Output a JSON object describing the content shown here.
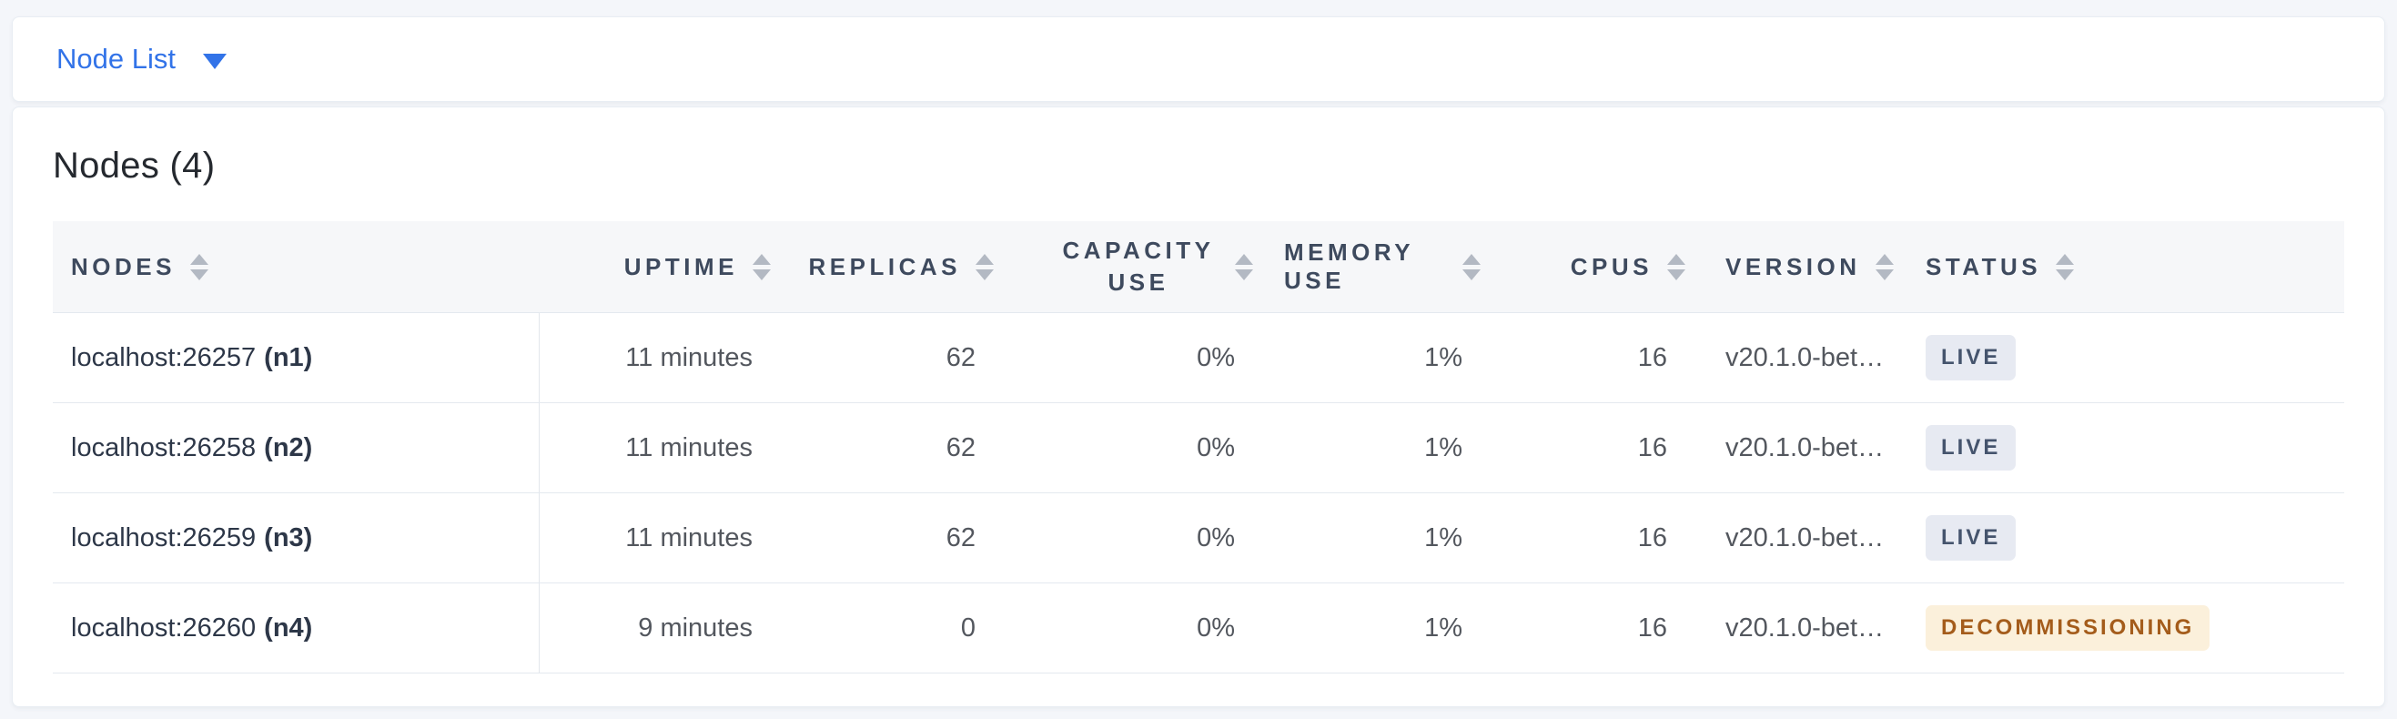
{
  "toolbar": {
    "view_selector": {
      "label": "Node List",
      "caret_icon": "caret-down-icon"
    }
  },
  "main": {
    "title": "Nodes (4)",
    "table": {
      "columns": [
        {
          "key": "nodes",
          "label": "NODES",
          "align": "left",
          "sortable": true
        },
        {
          "key": "uptime",
          "label": "UPTIME",
          "align": "right",
          "sortable": true
        },
        {
          "key": "replicas",
          "label": "REPLICAS",
          "align": "right",
          "sortable": true
        },
        {
          "key": "capacity_use",
          "label": "CAPACITY USE",
          "align": "right",
          "sortable": true,
          "wrap": true
        },
        {
          "key": "memory_use",
          "label": "MEMORY USE",
          "align": "right",
          "sortable": true
        },
        {
          "key": "cpus",
          "label": "CPUS",
          "align": "right",
          "sortable": true
        },
        {
          "key": "version",
          "label": "VERSION",
          "align": "left",
          "sortable": true
        },
        {
          "key": "status",
          "label": "STATUS",
          "align": "left",
          "sortable": true
        }
      ],
      "rows": [
        {
          "address": "localhost:26257",
          "node_id": "(n1)",
          "uptime": "11 minutes",
          "replicas": "62",
          "capacity_use": "0%",
          "memory_use": "1%",
          "cpus": "16",
          "version": "v20.1.0-bet…",
          "status": {
            "label": "LIVE",
            "type": "live"
          }
        },
        {
          "address": "localhost:26258",
          "node_id": "(n2)",
          "uptime": "11 minutes",
          "replicas": "62",
          "capacity_use": "0%",
          "memory_use": "1%",
          "cpus": "16",
          "version": "v20.1.0-bet…",
          "status": {
            "label": "LIVE",
            "type": "live"
          }
        },
        {
          "address": "localhost:26259",
          "node_id": "(n3)",
          "uptime": "11 minutes",
          "replicas": "62",
          "capacity_use": "0%",
          "memory_use": "1%",
          "cpus": "16",
          "version": "v20.1.0-bet…",
          "status": {
            "label": "LIVE",
            "type": "live"
          }
        },
        {
          "address": "localhost:26260",
          "node_id": "(n4)",
          "uptime": "9 minutes",
          "replicas": "0",
          "capacity_use": "0%",
          "memory_use": "1%",
          "cpus": "16",
          "version": "v20.1.0-bet…",
          "status": {
            "label": "DECOMMISSIONING",
            "type": "decommissioning"
          }
        }
      ]
    }
  },
  "colors": {
    "accent_blue": "#3273e8",
    "page_background": "#f4f6fa",
    "header_background": "#f6f7f9",
    "header_text": "#3e4a5e",
    "status": {
      "live": {
        "background": "#e7eaf2",
        "text": "#45546d"
      },
      "decommissioning": {
        "background": "#fbf0db",
        "text": "#a45c1b"
      }
    }
  }
}
